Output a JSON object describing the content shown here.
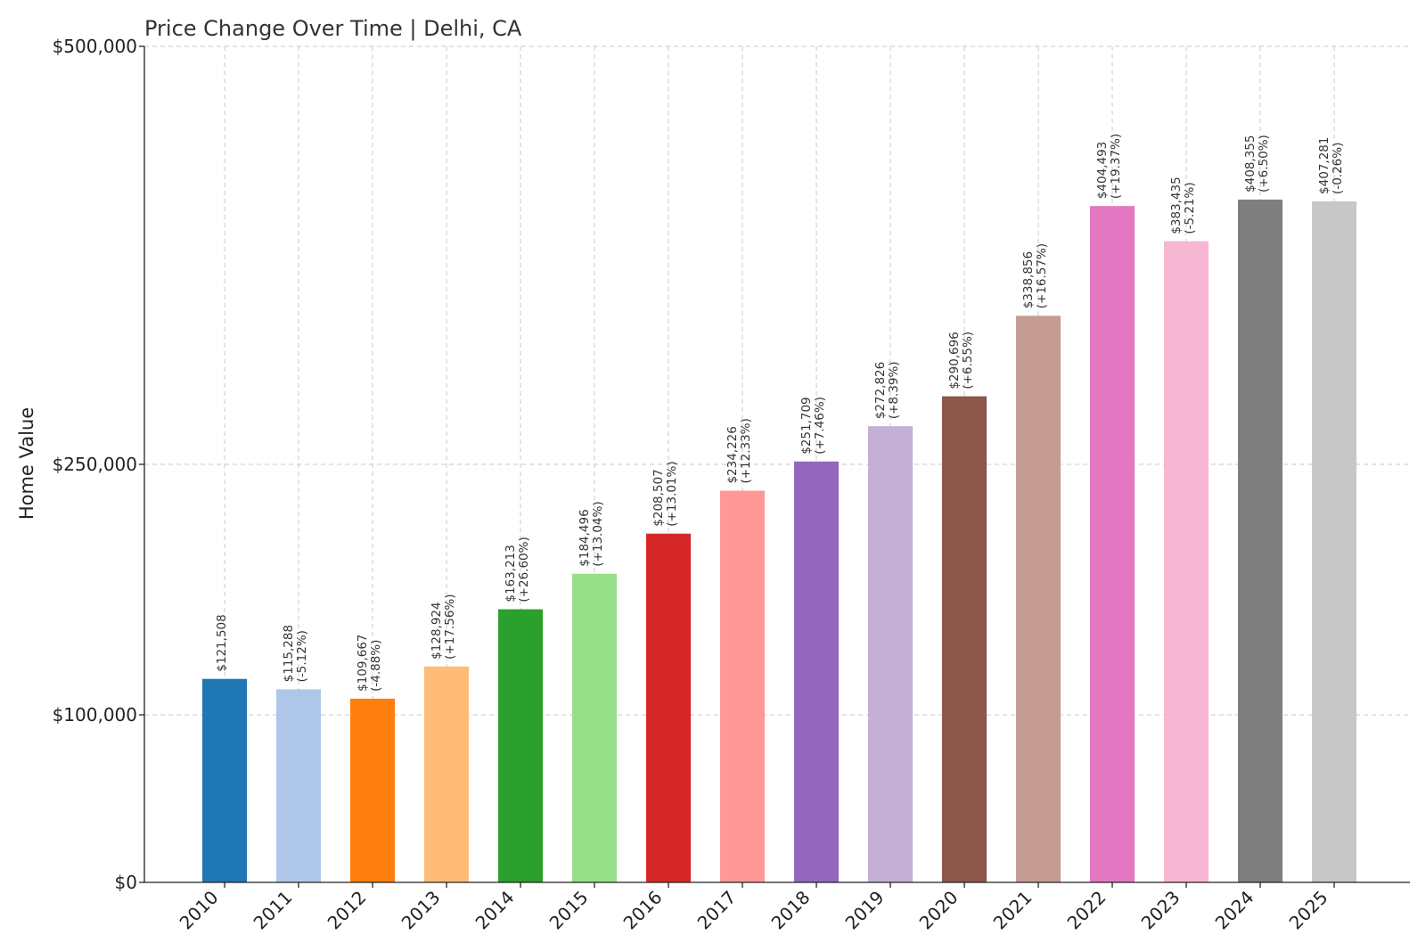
{
  "chart_data": {
    "type": "bar",
    "title": "Price Change Over Time | Delhi, CA",
    "xlabel": "",
    "ylabel": "Home Value",
    "ylim": [
      0,
      500000
    ],
    "yticks": [
      0,
      100000,
      250000,
      500000
    ],
    "ytick_labels": [
      "$0",
      "$100,000",
      "$250,000",
      "$500,000"
    ],
    "grid": true,
    "categories": [
      "2010",
      "2011",
      "2012",
      "2013",
      "2014",
      "2015",
      "2016",
      "2017",
      "2018",
      "2019",
      "2020",
      "2021",
      "2022",
      "2023",
      "2024",
      "2025"
    ],
    "values": [
      121508,
      115288,
      109667,
      128924,
      163213,
      184496,
      208507,
      234226,
      251709,
      272826,
      290696,
      338856,
      404493,
      383435,
      408355,
      407281
    ],
    "value_labels": [
      "$121,508",
      "$115,288",
      "$109,667",
      "$128,924",
      "$163,213",
      "$184,496",
      "$208,507",
      "$234,226",
      "$251,709",
      "$272,826",
      "$290,696",
      "$338,856",
      "$404,493",
      "$383,435",
      "$408,355",
      "$407,281"
    ],
    "change_labels": [
      "",
      "(-5.12%)",
      "(-4.88%)",
      "(+17.56%)",
      "(+26.60%)",
      "(+13.04%)",
      "(+13.01%)",
      "(+12.33%)",
      "(+7.46%)",
      "(+8.39%)",
      "(+6.55%)",
      "(+16.57%)",
      "(+19.37%)",
      "(-5.21%)",
      "(+6.50%)",
      "(-0.26%)"
    ],
    "colors": [
      "#1f77b4",
      "#aec7e8",
      "#ff7f0e",
      "#ffbb78",
      "#2ca02c",
      "#98df8a",
      "#d62728",
      "#ff9896",
      "#9467bd",
      "#c5b0d5",
      "#8c564b",
      "#c49c94",
      "#e377c2",
      "#f7b6d2",
      "#7f7f7f",
      "#c7c7c7"
    ]
  }
}
